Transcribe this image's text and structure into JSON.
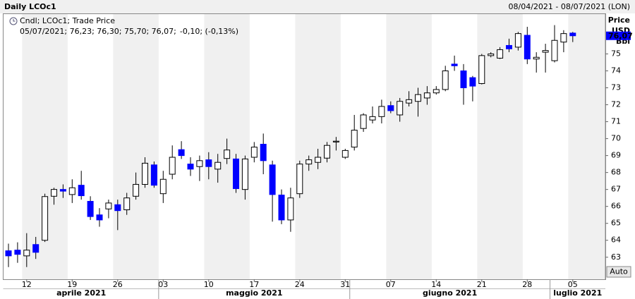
{
  "chart_data": {
    "type": "candlestick",
    "title": "Daily LCOc1",
    "date_range": "08/04/2021 - 08/07/2021 (LON)",
    "legend": {
      "label": "Cndl; LCOc1; Trade Price",
      "last": "05/07/2021; 76,23; 76,30; 75,70; 76,07;",
      "change": "-0,10; (-0,13%)"
    },
    "y_axis_label": [
      "Price",
      "USD",
      "Bbl"
    ],
    "last_price": {
      "value": 76.07,
      "label": "76,07"
    },
    "auto_button": "Auto",
    "up_color": "#ffffff",
    "down_color": "#0000ff",
    "wick_color": "#000000",
    "x": [
      "2021-04-08",
      "2021-04-09",
      "2021-04-12",
      "2021-04-13",
      "2021-04-14",
      "2021-04-15",
      "2021-04-16",
      "2021-04-19",
      "2021-04-20",
      "2021-04-21",
      "2021-04-22",
      "2021-04-23",
      "2021-04-26",
      "2021-04-27",
      "2021-04-28",
      "2021-04-29",
      "2021-04-30",
      "2021-05-03",
      "2021-05-04",
      "2021-05-05",
      "2021-05-06",
      "2021-05-07",
      "2021-05-10",
      "2021-05-11",
      "2021-05-12",
      "2021-05-13",
      "2021-05-14",
      "2021-05-17",
      "2021-05-18",
      "2021-05-19",
      "2021-05-20",
      "2021-05-21",
      "2021-05-24",
      "2021-05-25",
      "2021-05-26",
      "2021-05-27",
      "2021-05-28",
      "2021-05-31",
      "2021-06-01",
      "2021-06-02",
      "2021-06-03",
      "2021-06-04",
      "2021-06-07",
      "2021-06-08",
      "2021-06-09",
      "2021-06-10",
      "2021-06-11",
      "2021-06-14",
      "2021-06-15",
      "2021-06-16",
      "2021-06-17",
      "2021-06-18",
      "2021-06-21",
      "2021-06-22",
      "2021-06-23",
      "2021-06-24",
      "2021-06-25",
      "2021-06-28",
      "2021-06-29",
      "2021-06-30",
      "2021-07-01",
      "2021-07-02",
      "2021-07-05"
    ],
    "open": [
      63.38,
      63.42,
      63.08,
      63.75,
      64.0,
      66.6,
      67.0,
      66.7,
      67.25,
      66.3,
      65.5,
      65.85,
      66.1,
      65.8,
      66.6,
      67.3,
      68.45,
      66.75,
      67.9,
      69.35,
      68.5,
      68.35,
      68.75,
      68.2,
      68.83,
      68.8,
      67.0,
      68.9,
      69.67,
      68.45,
      66.67,
      65.2,
      66.75,
      68.5,
      68.6,
      68.85,
      69.8,
      68.9,
      69.5,
      70.6,
      71.1,
      71.3,
      71.95,
      71.4,
      72.1,
      72.2,
      72.4,
      72.7,
      72.9,
      74.4,
      74.0,
      73.6,
      73.25,
      74.9,
      74.75,
      75.5,
      75.4,
      76.1,
      74.7,
      75.1,
      74.6,
      75.7,
      76.23
    ],
    "high": [
      63.8,
      63.88,
      64.42,
      64.2,
      66.75,
      67.1,
      67.3,
      67.6,
      68.1,
      66.6,
      65.9,
      66.4,
      66.4,
      66.8,
      68.0,
      68.9,
      68.65,
      68.1,
      69.6,
      69.85,
      68.9,
      69.0,
      69.2,
      69.1,
      70.0,
      69.1,
      69.0,
      69.8,
      70.3,
      68.7,
      67.0,
      67.1,
      68.7,
      69.0,
      69.4,
      69.8,
      70.1,
      69.4,
      71.4,
      71.5,
      71.9,
      72.3,
      72.2,
      72.4,
      72.8,
      73.0,
      73.1,
      73.1,
      74.3,
      74.9,
      74.4,
      73.7,
      75.0,
      75.1,
      75.4,
      75.9,
      76.3,
      76.6,
      75.1,
      75.6,
      76.7,
      76.4,
      76.3
    ],
    "low": [
      62.42,
      62.67,
      62.42,
      62.9,
      63.9,
      66.1,
      66.5,
      66.2,
      66.4,
      65.2,
      64.8,
      65.3,
      64.6,
      65.5,
      66.4,
      67.1,
      67.1,
      66.2,
      67.6,
      68.8,
      67.8,
      67.5,
      67.6,
      67.4,
      68.5,
      66.8,
      66.4,
      68.6,
      67.9,
      65.1,
      64.95,
      64.5,
      66.5,
      68.1,
      68.2,
      68.6,
      69.3,
      68.8,
      69.3,
      70.4,
      70.9,
      70.9,
      71.5,
      71.0,
      71.9,
      71.3,
      72.0,
      72.6,
      72.8,
      74.0,
      72.0,
      72.2,
      73.2,
      74.8,
      74.7,
      75.1,
      75.2,
      74.4,
      73.9,
      73.9,
      74.5,
      75.1,
      75.7
    ],
    "close": [
      63.08,
      63.17,
      63.42,
      63.29,
      66.58,
      67.0,
      66.9,
      67.1,
      66.63,
      65.4,
      65.2,
      66.2,
      65.75,
      66.5,
      67.3,
      68.55,
      67.25,
      67.6,
      68.9,
      69.0,
      68.2,
      68.7,
      68.35,
      68.6,
      69.33,
      67.05,
      68.8,
      69.5,
      68.7,
      66.7,
      65.2,
      66.5,
      68.5,
      68.75,
      68.9,
      69.6,
      69.85,
      69.3,
      70.5,
      71.4,
      71.3,
      71.9,
      71.65,
      72.2,
      72.3,
      72.6,
      72.7,
      72.9,
      74.0,
      74.3,
      73.0,
      73.1,
      74.9,
      75.0,
      75.25,
      75.3,
      76.2,
      74.7,
      74.8,
      75.2,
      75.8,
      76.2,
      76.07
    ],
    "ylim": [
      61.7,
      77.35
    ],
    "yticks": [
      63,
      64,
      65,
      66,
      67,
      68,
      69,
      70,
      71,
      72,
      73,
      74,
      75
    ],
    "xticks": [
      {
        "value": "2021-04-12",
        "label": "12"
      },
      {
        "value": "2021-04-19",
        "label": "19"
      },
      {
        "value": "2021-04-26",
        "label": "26"
      },
      {
        "value": "2021-05-03",
        "label": "03"
      },
      {
        "value": "2021-05-10",
        "label": "10"
      },
      {
        "value": "2021-05-17",
        "label": "17"
      },
      {
        "value": "2021-05-24",
        "label": "24"
      },
      {
        "value": "2021-05-31",
        "label": "31"
      },
      {
        "value": "2021-06-07",
        "label": "07"
      },
      {
        "value": "2021-06-14",
        "label": "14"
      },
      {
        "value": "2021-06-21",
        "label": "21"
      },
      {
        "value": "2021-06-28",
        "label": "28"
      },
      {
        "value": "2021-07-05",
        "label": "05"
      }
    ],
    "months": [
      {
        "value": "2021-04",
        "label": "aprile 2021"
      },
      {
        "value": "2021-05",
        "label": "maggio 2021"
      },
      {
        "value": "2021-06",
        "label": "giugno 2021"
      },
      {
        "value": "2021-07",
        "label": "luglio 2021"
      }
    ]
  }
}
